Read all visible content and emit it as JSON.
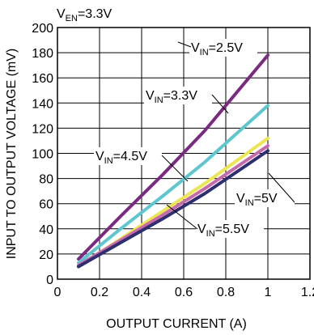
{
  "chart_data": {
    "type": "line",
    "title": "",
    "xlabel": "OUTPUT CURRENT (A)",
    "ylabel": "INPUT TO OUTPUT VOLTAGE (mV)",
    "xlim": [
      0,
      1.2
    ],
    "ylim": [
      0,
      200
    ],
    "xticks": [
      0,
      0.2,
      0.4,
      0.6,
      0.8,
      1,
      1.2
    ],
    "xtick_labels": [
      "0",
      "0.2",
      "0.4",
      "0.6",
      "0.8",
      "1",
      "1.2"
    ],
    "yticks": [
      0,
      20,
      40,
      60,
      80,
      100,
      120,
      140,
      160,
      180,
      200
    ],
    "ytick_labels": [
      "0",
      "20",
      "40",
      "60",
      "80",
      "100",
      "120",
      "140",
      "160",
      "180",
      "200"
    ],
    "grid": true,
    "condition": {
      "main": "V",
      "sub": "EN",
      "suffix": "=3.3V"
    },
    "series": [
      {
        "name": "V_IN=2.5V",
        "color": "#7b2a82",
        "x": [
          0.1,
          0.3,
          0.5,
          0.7,
          1.0
        ],
        "y": [
          16,
          50,
          83,
          118,
          178
        ]
      },
      {
        "name": "V_IN=3.3V",
        "color": "#5ec6cf",
        "x": [
          0.1,
          0.3,
          0.5,
          0.7,
          1.0
        ],
        "y": [
          13,
          40,
          66,
          93,
          138
        ]
      },
      {
        "name": "V_IN=4.5V",
        "color": "#ece554",
        "x": [
          0.1,
          0.3,
          0.5,
          0.7,
          1.0
        ],
        "y": [
          10,
          32,
          54,
          76,
          112
        ]
      },
      {
        "name": "V_IN=5V",
        "color": "#c66aae",
        "x": [
          0.1,
          0.3,
          0.5,
          0.7,
          1.0
        ],
        "y": [
          11,
          31,
          51,
          72,
          106
        ]
      },
      {
        "name": "V_IN=5.5V",
        "color": "#2e2e70",
        "x": [
          0.1,
          0.3,
          0.5,
          0.7,
          1.0
        ],
        "y": [
          10,
          29,
          48,
          68,
          102
        ]
      }
    ],
    "annotations": [
      {
        "main": "V",
        "sub": "IN",
        "suffix": "=2.5V"
      },
      {
        "main": "V",
        "sub": "IN",
        "suffix": "=3.3V"
      },
      {
        "main": "V",
        "sub": "IN",
        "suffix": "=4.5V"
      },
      {
        "main": "V",
        "sub": "IN",
        "suffix": "=5V"
      },
      {
        "main": "V",
        "sub": "IN",
        "suffix": "=5.5V"
      }
    ]
  }
}
